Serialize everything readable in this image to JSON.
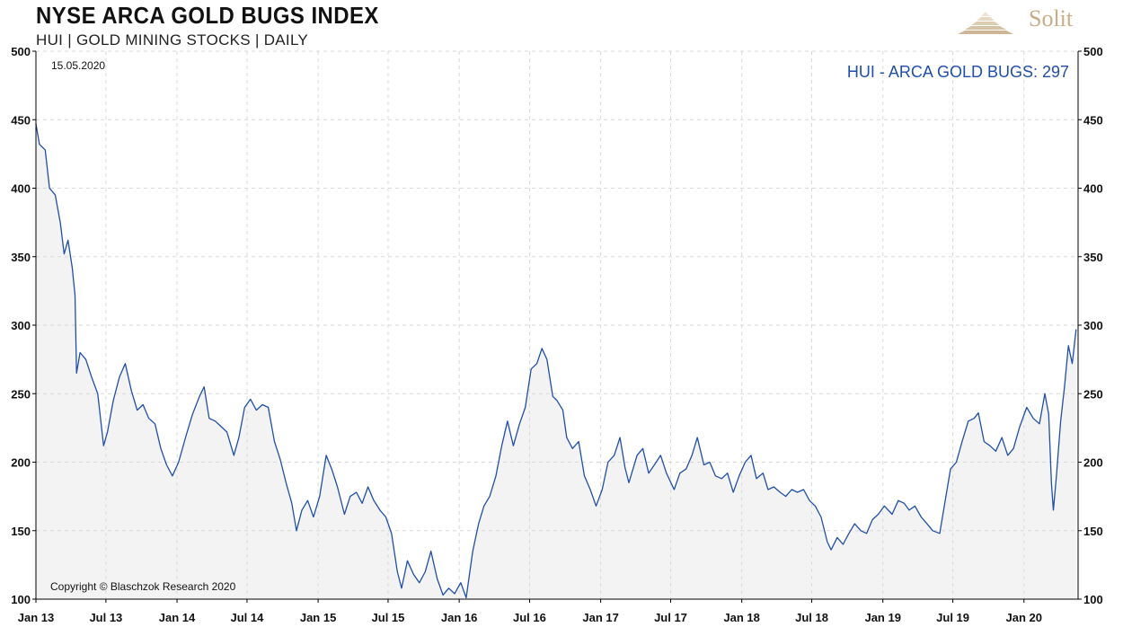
{
  "header": {
    "title": "NYSE ARCA GOLD BUGS INDEX",
    "subtitle": "HUI | GOLD MINING STOCKS | DAILY"
  },
  "logo": {
    "text": "Solit",
    "color": "#c9ad86"
  },
  "chart_data": {
    "type": "area",
    "date": "15.05.2020",
    "copyright": "Copyright © Blaschzok Research 2020",
    "series": [
      {
        "name": "HUI - ARCA GOLD BUGS: 297",
        "color": "#1f4fa8",
        "fill": "#f3f3f3",
        "points": [
          [
            "2013-01-01",
            447
          ],
          [
            "2013-01-10",
            432
          ],
          [
            "2013-01-25",
            428
          ],
          [
            "2013-02-05",
            400
          ],
          [
            "2013-02-20",
            395
          ],
          [
            "2013-03-05",
            375
          ],
          [
            "2013-03-15",
            352
          ],
          [
            "2013-03-25",
            362
          ],
          [
            "2013-04-05",
            342
          ],
          [
            "2013-04-12",
            322
          ],
          [
            "2013-04-16",
            265
          ],
          [
            "2013-04-25",
            280
          ],
          [
            "2013-05-10",
            275
          ],
          [
            "2013-05-25",
            262
          ],
          [
            "2013-06-10",
            250
          ],
          [
            "2013-06-25",
            212
          ],
          [
            "2013-07-05",
            222
          ],
          [
            "2013-07-20",
            245
          ],
          [
            "2013-08-05",
            262
          ],
          [
            "2013-08-20",
            272
          ],
          [
            "2013-09-05",
            252
          ],
          [
            "2013-09-20",
            238
          ],
          [
            "2013-10-05",
            242
          ],
          [
            "2013-10-20",
            232
          ],
          [
            "2013-11-05",
            228
          ],
          [
            "2013-11-20",
            210
          ],
          [
            "2013-12-05",
            198
          ],
          [
            "2013-12-20",
            190
          ],
          [
            "2014-01-05",
            200
          ],
          [
            "2014-01-25",
            220
          ],
          [
            "2014-02-10",
            235
          ],
          [
            "2014-02-28",
            248
          ],
          [
            "2014-03-12",
            255
          ],
          [
            "2014-03-25",
            232
          ],
          [
            "2014-04-10",
            230
          ],
          [
            "2014-04-25",
            226
          ],
          [
            "2014-05-10",
            222
          ],
          [
            "2014-05-28",
            205
          ],
          [
            "2014-06-10",
            218
          ],
          [
            "2014-06-25",
            240
          ],
          [
            "2014-07-10",
            246
          ],
          [
            "2014-07-25",
            238
          ],
          [
            "2014-08-10",
            242
          ],
          [
            "2014-08-25",
            240
          ],
          [
            "2014-09-10",
            215
          ],
          [
            "2014-09-25",
            202
          ],
          [
            "2014-10-10",
            185
          ],
          [
            "2014-10-25",
            170
          ],
          [
            "2014-11-06",
            150
          ],
          [
            "2014-11-20",
            165
          ],
          [
            "2014-12-05",
            172
          ],
          [
            "2014-12-20",
            160
          ],
          [
            "2015-01-05",
            175
          ],
          [
            "2015-01-22",
            205
          ],
          [
            "2015-02-05",
            195
          ],
          [
            "2015-02-20",
            182
          ],
          [
            "2015-03-10",
            162
          ],
          [
            "2015-03-25",
            175
          ],
          [
            "2015-04-10",
            178
          ],
          [
            "2015-04-25",
            170
          ],
          [
            "2015-05-10",
            182
          ],
          [
            "2015-05-25",
            172
          ],
          [
            "2015-06-10",
            165
          ],
          [
            "2015-06-25",
            160
          ],
          [
            "2015-07-10",
            148
          ],
          [
            "2015-07-25",
            120
          ],
          [
            "2015-08-05",
            108
          ],
          [
            "2015-08-20",
            128
          ],
          [
            "2015-09-05",
            118
          ],
          [
            "2015-09-20",
            112
          ],
          [
            "2015-10-05",
            120
          ],
          [
            "2015-10-20",
            135
          ],
          [
            "2015-11-05",
            115
          ],
          [
            "2015-11-20",
            103
          ],
          [
            "2015-12-05",
            108
          ],
          [
            "2015-12-20",
            104
          ],
          [
            "2016-01-05",
            112
          ],
          [
            "2016-01-19",
            101
          ],
          [
            "2016-02-05",
            135
          ],
          [
            "2016-02-20",
            155
          ],
          [
            "2016-03-05",
            168
          ],
          [
            "2016-03-20",
            175
          ],
          [
            "2016-04-05",
            190
          ],
          [
            "2016-04-20",
            212
          ],
          [
            "2016-05-05",
            230
          ],
          [
            "2016-05-20",
            212
          ],
          [
            "2016-06-05",
            228
          ],
          [
            "2016-06-20",
            240
          ],
          [
            "2016-07-05",
            268
          ],
          [
            "2016-07-20",
            272
          ],
          [
            "2016-08-02",
            283
          ],
          [
            "2016-08-15",
            275
          ],
          [
            "2016-08-30",
            248
          ],
          [
            "2016-09-10",
            245
          ],
          [
            "2016-09-25",
            238
          ],
          [
            "2016-10-05",
            218
          ],
          [
            "2016-10-20",
            210
          ],
          [
            "2016-11-05",
            215
          ],
          [
            "2016-11-20",
            190
          ],
          [
            "2016-12-05",
            180
          ],
          [
            "2016-12-20",
            168
          ],
          [
            "2017-01-05",
            180
          ],
          [
            "2017-01-20",
            200
          ],
          [
            "2017-02-05",
            205
          ],
          [
            "2017-02-20",
            218
          ],
          [
            "2017-03-05",
            196
          ],
          [
            "2017-03-15",
            185
          ],
          [
            "2017-04-05",
            205
          ],
          [
            "2017-04-20",
            210
          ],
          [
            "2017-05-05",
            192
          ],
          [
            "2017-05-20",
            198
          ],
          [
            "2017-06-05",
            205
          ],
          [
            "2017-06-20",
            192
          ],
          [
            "2017-07-10",
            180
          ],
          [
            "2017-07-25",
            192
          ],
          [
            "2017-08-10",
            195
          ],
          [
            "2017-08-25",
            205
          ],
          [
            "2017-09-08",
            218
          ],
          [
            "2017-09-25",
            198
          ],
          [
            "2017-10-10",
            200
          ],
          [
            "2017-10-25",
            190
          ],
          [
            "2017-11-10",
            188
          ],
          [
            "2017-11-25",
            192
          ],
          [
            "2017-12-10",
            178
          ],
          [
            "2017-12-25",
            190
          ],
          [
            "2018-01-10",
            200
          ],
          [
            "2018-01-25",
            205
          ],
          [
            "2018-02-08",
            188
          ],
          [
            "2018-02-25",
            192
          ],
          [
            "2018-03-10",
            180
          ],
          [
            "2018-03-25",
            182
          ],
          [
            "2018-04-10",
            178
          ],
          [
            "2018-04-25",
            175
          ],
          [
            "2018-05-10",
            180
          ],
          [
            "2018-05-25",
            178
          ],
          [
            "2018-06-10",
            180
          ],
          [
            "2018-06-25",
            172
          ],
          [
            "2018-07-10",
            168
          ],
          [
            "2018-07-25",
            160
          ],
          [
            "2018-08-10",
            142
          ],
          [
            "2018-08-20",
            136
          ],
          [
            "2018-09-05",
            145
          ],
          [
            "2018-09-20",
            140
          ],
          [
            "2018-10-05",
            148
          ],
          [
            "2018-10-20",
            155
          ],
          [
            "2018-11-05",
            150
          ],
          [
            "2018-11-20",
            148
          ],
          [
            "2018-12-05",
            158
          ],
          [
            "2018-12-20",
            162
          ],
          [
            "2019-01-05",
            168
          ],
          [
            "2019-01-25",
            162
          ],
          [
            "2019-02-10",
            172
          ],
          [
            "2019-02-25",
            170
          ],
          [
            "2019-03-10",
            165
          ],
          [
            "2019-03-25",
            168
          ],
          [
            "2019-04-10",
            160
          ],
          [
            "2019-04-25",
            155
          ],
          [
            "2019-05-10",
            150
          ],
          [
            "2019-05-28",
            148
          ],
          [
            "2019-06-10",
            170
          ],
          [
            "2019-06-25",
            195
          ],
          [
            "2019-07-10",
            200
          ],
          [
            "2019-07-25",
            215
          ],
          [
            "2019-08-10",
            230
          ],
          [
            "2019-08-25",
            232
          ],
          [
            "2019-09-05",
            236
          ],
          [
            "2019-09-20",
            215
          ],
          [
            "2019-10-05",
            212
          ],
          [
            "2019-10-20",
            208
          ],
          [
            "2019-11-05",
            218
          ],
          [
            "2019-11-20",
            205
          ],
          [
            "2019-12-05",
            210
          ],
          [
            "2019-12-20",
            225
          ],
          [
            "2020-01-08",
            240
          ],
          [
            "2020-01-25",
            232
          ],
          [
            "2020-02-10",
            228
          ],
          [
            "2020-02-24",
            250
          ],
          [
            "2020-03-05",
            235
          ],
          [
            "2020-03-12",
            185
          ],
          [
            "2020-03-17",
            165
          ],
          [
            "2020-03-25",
            190
          ],
          [
            "2020-04-05",
            230
          ],
          [
            "2020-04-15",
            255
          ],
          [
            "2020-04-25",
            285
          ],
          [
            "2020-05-05",
            272
          ],
          [
            "2020-05-15",
            297
          ]
        ]
      }
    ],
    "x_ticks": [
      "Jan 13",
      "Jul 13",
      "Jan 14",
      "Jul 14",
      "Jan 15",
      "Jul 15",
      "Jan 16",
      "Jul 16",
      "Jan 17",
      "Jul 17",
      "Jan 18",
      "Jul 18",
      "Jan 19",
      "Jul 19",
      "Jan 20"
    ],
    "x_tick_dates": [
      "2013-01-01",
      "2013-07-01",
      "2014-01-01",
      "2014-07-01",
      "2015-01-01",
      "2015-07-01",
      "2016-01-01",
      "2016-07-01",
      "2017-01-01",
      "2017-07-01",
      "2018-01-01",
      "2018-07-01",
      "2019-01-01",
      "2019-07-01",
      "2020-01-01"
    ],
    "xlim": [
      "2013-01-01",
      "2020-05-20"
    ],
    "y_ticks": [
      100,
      150,
      200,
      250,
      300,
      350,
      400,
      450,
      500
    ],
    "ylim": [
      100,
      500
    ],
    "y_axis": "both sides",
    "grid": true,
    "legend_position": "top-right"
  }
}
